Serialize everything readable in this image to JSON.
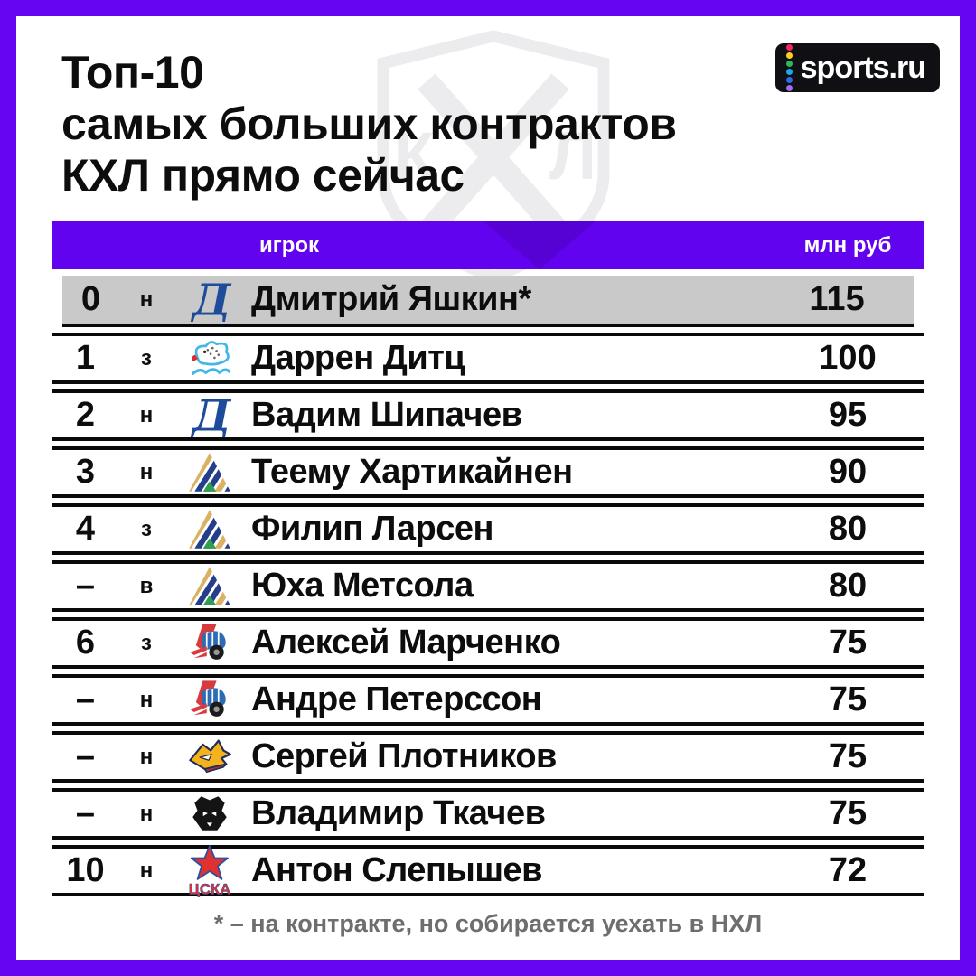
{
  "page": {
    "frame_color": "#6505f2",
    "header_bar_color": "#6103ee",
    "highlight_row_color": "#c9c9c9"
  },
  "title": {
    "line1": "Топ-10",
    "line2": "самых больших контрактов",
    "line3": "КХЛ прямо сейчас"
  },
  "brand": {
    "name": "sports.ru",
    "dot_colors": [
      "#f72466",
      "#fccf1e",
      "#2eb85c",
      "#1ba7e8",
      "#2e6be6",
      "#9b6ef3"
    ]
  },
  "watermark": {
    "letters": [
      "К",
      "Х",
      "Л"
    ]
  },
  "table": {
    "header": {
      "player": "игрок",
      "value": "млн руб"
    },
    "rows": [
      {
        "rank": "0",
        "pos": "н",
        "team": "dynamo",
        "player": "Дмитрий Яшкин*",
        "value": "115",
        "highlight": true
      },
      {
        "rank": "1",
        "pos": "з",
        "team": "barys",
        "player": "Даррен Дитц",
        "value": "100",
        "highlight": false
      },
      {
        "rank": "2",
        "pos": "н",
        "team": "dynamo",
        "player": "Вадим Шипачев",
        "value": "95",
        "highlight": false
      },
      {
        "rank": "3",
        "pos": "н",
        "team": "salavat",
        "player": "Теему Хартикайнен",
        "value": "90",
        "highlight": false
      },
      {
        "rank": "4",
        "pos": "з",
        "team": "salavat",
        "player": "Филип Ларсен",
        "value": "80",
        "highlight": false
      },
      {
        "rank": "–",
        "pos": "в",
        "team": "salavat",
        "player": "Юха Метсола",
        "value": "80",
        "highlight": false
      },
      {
        "rank": "6",
        "pos": "з",
        "team": "lokomotiv",
        "player": "Алексей Марченко",
        "value": "75",
        "highlight": false
      },
      {
        "rank": "–",
        "pos": "н",
        "team": "lokomotiv",
        "player": "Андре Петерссон",
        "value": "75",
        "highlight": false
      },
      {
        "rank": "–",
        "pos": "н",
        "team": "metallurg",
        "player": "Сергей Плотников",
        "value": "75",
        "highlight": false
      },
      {
        "rank": "–",
        "pos": "н",
        "team": "traktor",
        "player": "Владимир Ткачев",
        "value": "75",
        "highlight": false
      },
      {
        "rank": "10",
        "pos": "н",
        "team": "cska",
        "player": "Антон Слепышев",
        "value": "72",
        "highlight": false
      }
    ]
  },
  "footnote": "* – на контракте, но собирается уехать в НХЛ"
}
